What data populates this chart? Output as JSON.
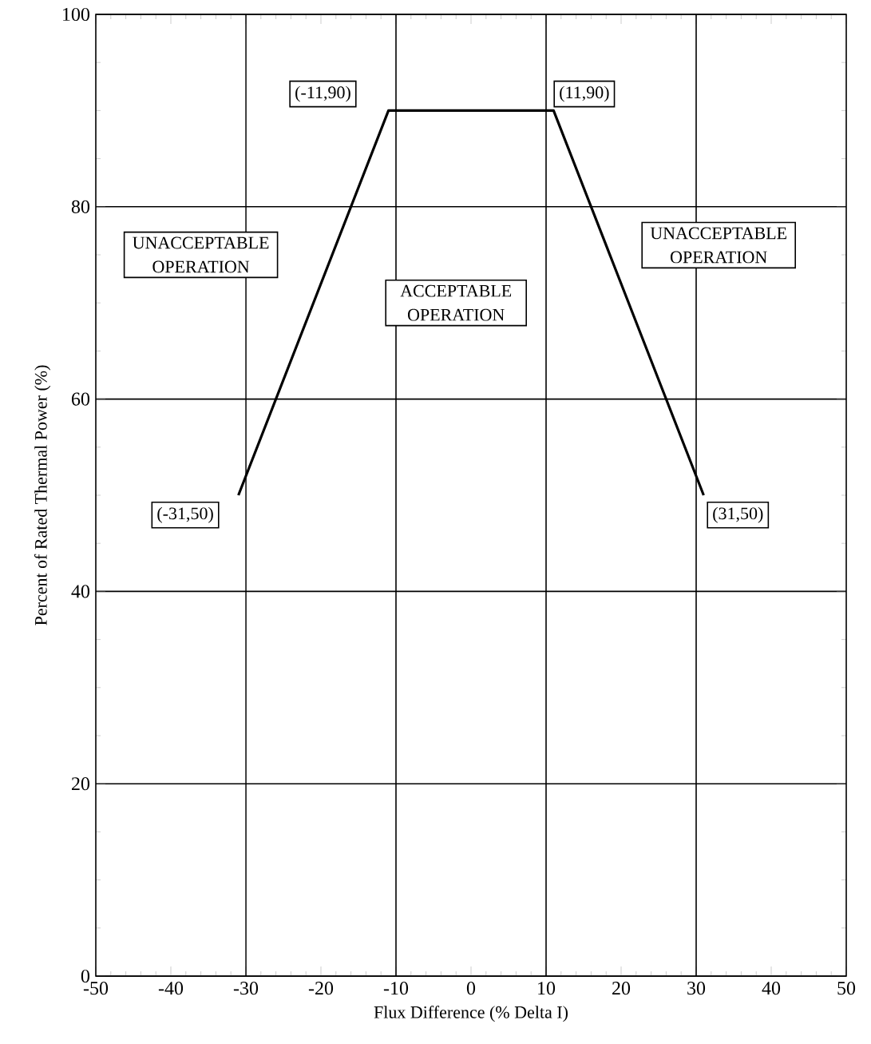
{
  "chart_data": {
    "type": "line",
    "xlabel": "Flux Difference (% Delta I)",
    "ylabel": "Percent of Rated Thermal Power (%)",
    "x": [
      -31,
      -11,
      11,
      31
    ],
    "series": [
      {
        "color": "#000000",
        "values": [
          50,
          90,
          90,
          50
        ]
      }
    ],
    "xlim": [
      -50,
      50
    ],
    "ylim": [
      0,
      100
    ],
    "xticks": [
      -50,
      -40,
      -30,
      -20,
      -10,
      0,
      10,
      20,
      30,
      40,
      50
    ],
    "yticks": [
      0,
      20,
      40,
      60,
      80,
      100
    ],
    "grid": "y",
    "marker": "none",
    "line_style": "solid",
    "ref_lines": [
      {
        "axis": "x",
        "value": -30
      },
      {
        "axis": "x",
        "value": -10
      },
      {
        "axis": "x",
        "value": 10
      },
      {
        "axis": "x",
        "value": 30
      }
    ],
    "annotations": [
      {
        "text": "(-11,90)",
        "x": -11,
        "y": 90
      },
      {
        "text": "(11,90)",
        "x": 11,
        "y": 90
      },
      {
        "text": "(-31,50)",
        "x": -31,
        "y": 50
      },
      {
        "text": "(31,50)",
        "x": 31,
        "y": 50
      },
      "UNACCEPTABLE OPERATION",
      "ACCEPTABLE OPERATION",
      "UNACCEPTABLE OPERATION"
    ]
  }
}
